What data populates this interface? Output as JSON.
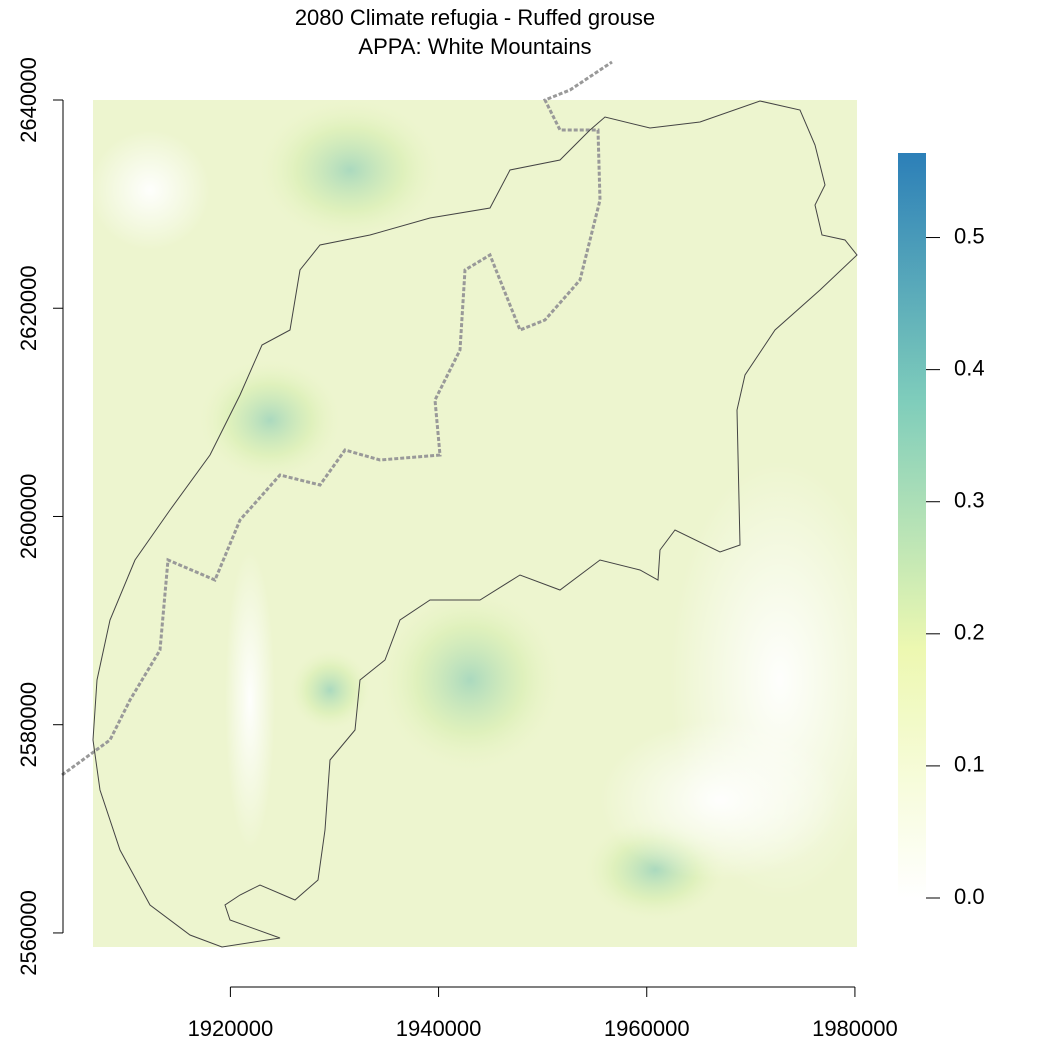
{
  "chart_data": {
    "type": "raster",
    "title": "2080 Climate refugia - Ruffed grouse",
    "subtitle": "APPA: White Mountains",
    "xlim": [
      1906800,
      1980200
    ],
    "xticks": [
      1920000,
      1940000,
      1960000,
      1980000
    ],
    "ylim": [
      2558650,
      2640000
    ],
    "yticks": [
      2560000,
      2580000,
      2600000,
      2620000,
      2640000
    ],
    "colorbar": {
      "lim": [
        0,
        0.564
      ],
      "ticks": [
        {
          "value": 0,
          "label": "0.0"
        },
        0.1,
        0.2,
        0.3,
        0.4,
        0.5
      ],
      "colors": [
        "#ffffff",
        "#edf8b1",
        "#7fcdbb",
        "#2c7fb8"
      ]
    }
  }
}
